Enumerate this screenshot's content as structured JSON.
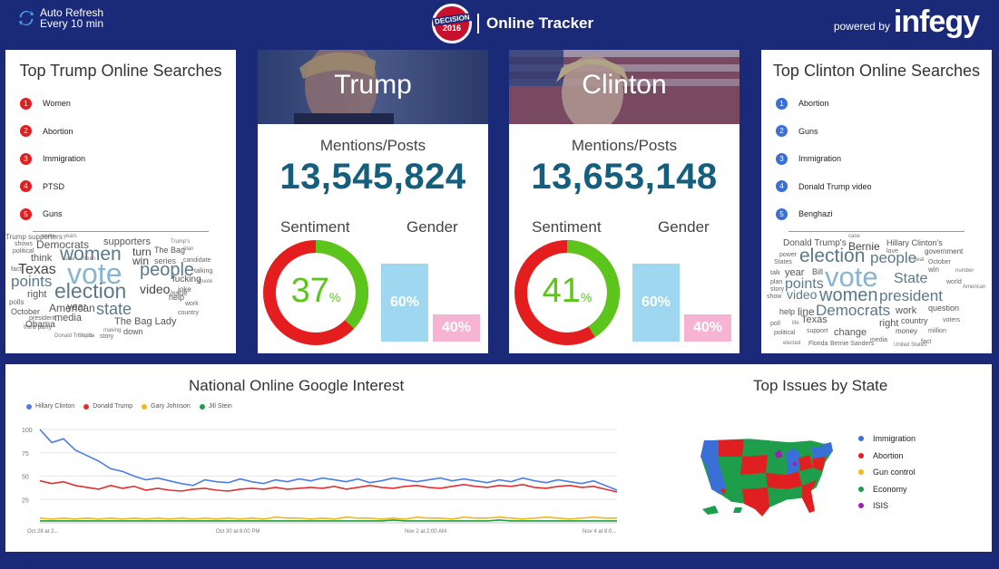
{
  "header": {
    "refresh_line1": "Auto Refresh",
    "refresh_line2": "Every 10 min",
    "badge_line1": "DECISION",
    "badge_line2": "2016",
    "title": "Online Tracker",
    "powered_by": "powered by",
    "brand": "infegy"
  },
  "trump_searches": {
    "title": "Top Trump Online Searches",
    "items": [
      {
        "rank": "1",
        "label": "Women"
      },
      {
        "rank": "2",
        "label": "Abortion"
      },
      {
        "rank": "3",
        "label": "Immigration"
      },
      {
        "rank": "4",
        "label": "PTSD"
      },
      {
        "rank": "5",
        "label": "Guns"
      }
    ],
    "color": "#e02020"
  },
  "clinton_searches": {
    "title": "Top Clinton Online Searches",
    "items": [
      {
        "rank": "1",
        "label": "Abortion"
      },
      {
        "rank": "2",
        "label": "Guns"
      },
      {
        "rank": "3",
        "label": "Immigration"
      },
      {
        "rank": "4",
        "label": "Donald Trump video"
      },
      {
        "rank": "5",
        "label": "Benghazi"
      }
    ],
    "color": "#3a6fd8"
  },
  "trump_cloud": [
    "name",
    "years",
    "shows",
    "Democrats",
    "supporters",
    "Trump's",
    "political",
    "women",
    "turn",
    "The Bag",
    "plan",
    "think",
    "win",
    "case",
    "mean",
    "series",
    "candidate",
    "fact",
    "Texas",
    "vote",
    "people",
    "talking",
    "points",
    "fucking",
    "Quote",
    "right",
    "election",
    "video",
    "joke",
    "issue",
    "polls",
    "help",
    "work",
    "October",
    "American",
    "year",
    "state",
    "president",
    "media",
    "country",
    "third party",
    "Obama",
    "The Bag Lady",
    "Donald Trump's",
    "Florida",
    "making",
    "story",
    "down",
    "Trump supporters"
  ],
  "clinton_cloud": [
    "case",
    "Donald Trump's",
    "Bernie",
    "Hillary Clinton's",
    "power",
    "love",
    "government",
    "election",
    "people",
    "States",
    "deal",
    "October",
    "talk",
    "year",
    "Bill",
    "win",
    "number",
    "plan",
    "points",
    "vote",
    "State",
    "world",
    "story",
    "American",
    "show",
    "video",
    "women",
    "president",
    "help",
    "line",
    "Democrats",
    "work",
    "question",
    "poll",
    "life",
    "Texas",
    "right",
    "country",
    "voters",
    "political",
    "support",
    "change",
    "money",
    "million",
    "elected",
    "Florida",
    "Bernie Sanders",
    "media",
    "fact",
    "United States"
  ],
  "trump": {
    "name": "Trump",
    "mentions_label": "Mentions/Posts",
    "mentions": "13,545,824",
    "sentiment_label": "Sentiment",
    "gender_label": "Gender",
    "sentiment_value": "37",
    "sentiment_pct": "%",
    "sentiment_fraction": 0.37,
    "male": "60%",
    "female": "40%",
    "male_fraction": 0.6,
    "female_fraction": 0.4
  },
  "clinton": {
    "name": "Clinton",
    "mentions_label": "Mentions/Posts",
    "mentions": "13,653,148",
    "sentiment_label": "Sentiment",
    "gender_label": "Gender",
    "sentiment_value": "41",
    "sentiment_pct": "%",
    "sentiment_fraction": 0.41,
    "male": "60%",
    "female": "40%",
    "male_fraction": 0.6,
    "female_fraction": 0.4
  },
  "colors": {
    "positive": "#5cc51b",
    "negative": "#e41e1e",
    "male": "#9fd6f0",
    "female": "#f7b4d2",
    "hillary": "#4a7ee8",
    "trump": "#e03030",
    "johnson": "#f2b81b",
    "stein": "#1e9e4a",
    "isis": "#a11cb8"
  },
  "google": {
    "title": "National Online Google Interest"
  },
  "chart_data": {
    "type": "line",
    "title": "National Online Google Interest",
    "xlabel": "",
    "ylabel": "",
    "ylim": [
      0,
      100
    ],
    "yticks": [
      "100",
      "75",
      "50",
      "25"
    ],
    "xtick_labels": [
      "Oct 28 at 2...",
      "Oct 30 at 8:00 PM",
      "Nov 2 at 2:00 AM",
      "Nov 4 at 8:0..."
    ],
    "series": [
      {
        "name": "Hillary Clinton",
        "values": [
          100,
          86,
          90,
          78,
          72,
          66,
          58,
          55,
          50,
          46,
          48,
          45,
          42,
          40,
          46,
          44,
          43,
          47,
          44,
          42,
          46,
          44,
          47,
          45,
          48,
          46,
          44,
          47,
          43,
          45,
          48,
          46,
          44,
          46,
          48,
          45,
          47,
          45,
          43,
          46,
          44,
          48,
          45,
          43,
          46,
          44,
          42,
          45,
          40,
          35
        ]
      },
      {
        "name": "Donald Trump",
        "values": [
          45,
          42,
          44,
          40,
          38,
          36,
          40,
          37,
          39,
          35,
          37,
          35,
          34,
          36,
          37,
          35,
          34,
          36,
          37,
          36,
          38,
          36,
          37,
          38,
          37,
          39,
          36,
          38,
          40,
          38,
          37,
          39,
          40,
          38,
          37,
          39,
          41,
          39,
          38,
          40,
          39,
          41,
          38,
          37,
          39,
          40,
          38,
          39,
          36,
          33
        ]
      },
      {
        "name": "Gary Johnson",
        "values": [
          5,
          4,
          5,
          4,
          5,
          4,
          5,
          4,
          5,
          4,
          5,
          4,
          5,
          4,
          5,
          4,
          5,
          4,
          5,
          4,
          6,
          5,
          5,
          4,
          5,
          4,
          6,
          5,
          5,
          4,
          5,
          4,
          6,
          5,
          5,
          4,
          6,
          5,
          5,
          6,
          5,
          4,
          5,
          6,
          5,
          4,
          5,
          6,
          5,
          5
        ]
      },
      {
        "name": "Jill Stein",
        "values": [
          2,
          2,
          2,
          2,
          2,
          2,
          2,
          2,
          2,
          2,
          2,
          2,
          2,
          2,
          2,
          2,
          2,
          2,
          2,
          2,
          2,
          2,
          2,
          2,
          2,
          2,
          2,
          2,
          2,
          2,
          3,
          2,
          2,
          2,
          2,
          2,
          2,
          2,
          2,
          3,
          2,
          2,
          2,
          2,
          2,
          2,
          2,
          2,
          2,
          2
        ]
      }
    ]
  },
  "issues": {
    "title": "Top Issues by State",
    "legend": [
      {
        "label": "Immigration",
        "color": "#3a6fd8"
      },
      {
        "label": "Abortion",
        "color": "#e02020"
      },
      {
        "label": "Gun control",
        "color": "#f2b81b"
      },
      {
        "label": "Economy",
        "color": "#1e9e4a"
      },
      {
        "label": "ISIS",
        "color": "#a11cb8"
      }
    ]
  }
}
